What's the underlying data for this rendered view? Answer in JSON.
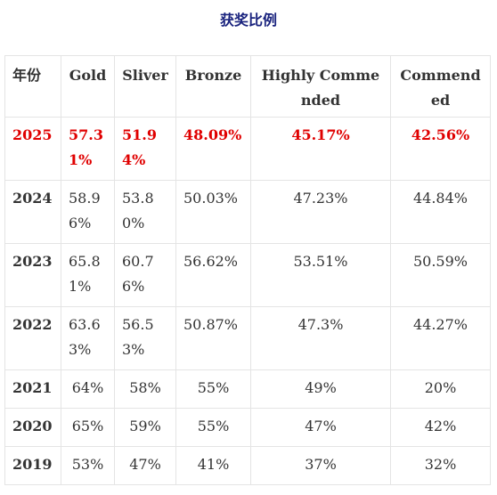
{
  "title": "获奖比例",
  "table": {
    "headers": [
      "年份",
      "Gold",
      "Sliver",
      "Bronze",
      "Highly Commended",
      "Commended"
    ],
    "rows": [
      {
        "year": "2025",
        "gold": "57.31%",
        "silver": "51.94%",
        "bronze": "48.09%",
        "highly_commended": "45.17%",
        "commended": "42.56%"
      },
      {
        "year": "2024",
        "gold": "58.96%",
        "silver": "53.80%",
        "bronze": "50.03%",
        "highly_commended": "47.23%",
        "commended": "44.84%"
      },
      {
        "year": "2023",
        "gold": "65.81%",
        "silver": "60.76%",
        "bronze": "56.62%",
        "highly_commended": "53.51%",
        "commended": "50.59%"
      },
      {
        "year": "2022",
        "gold": "63.63%",
        "silver": "56.53%",
        "bronze": "50.87%",
        "highly_commended": "47.3%",
        "commended": "44.27%"
      },
      {
        "year": "2021",
        "gold": "64%",
        "silver": "58%",
        "bronze": "55%",
        "highly_commended": "49%",
        "commended": "20%"
      },
      {
        "year": "2020",
        "gold": "65%",
        "silver": "59%",
        "bronze": "55%",
        "highly_commended": "47%",
        "commended": "42%"
      },
      {
        "year": "2019",
        "gold": "53%",
        "silver": "47%",
        "bronze": "41%",
        "highly_commended": "37%",
        "commended": "32%"
      }
    ]
  },
  "colors": {
    "title": "#1a237e",
    "highlight": "#e00000",
    "border": "#e4e4e4"
  }
}
